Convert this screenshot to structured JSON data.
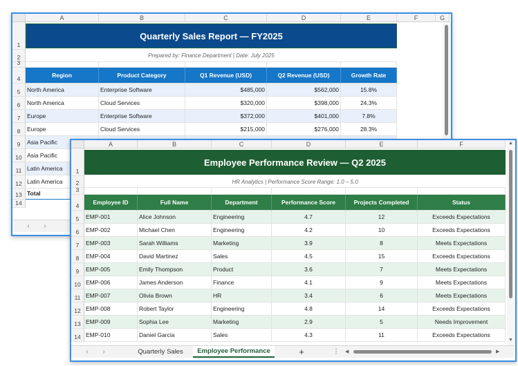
{
  "sheet1": {
    "columns": [
      "A",
      "B",
      "C",
      "D",
      "E",
      "F",
      "G"
    ],
    "rows": [
      "1",
      "2",
      "3",
      "4",
      "5",
      "6",
      "7",
      "8",
      "9",
      "10",
      "11",
      "12",
      "13",
      "14"
    ],
    "title": "Quarterly Sales Report — FY2025",
    "subtitle": "Prepared by: Finance Department  |  Date: July 2025",
    "headers": [
      "Region",
      "Product Category",
      "Q1 Revenue (USD)",
      "Q2 Revenue (USD)",
      "Growth Rate"
    ],
    "data": [
      [
        "North America",
        "Enterprise Software",
        "$485,000",
        "$562,000",
        "15.8%"
      ],
      [
        "North America",
        "Cloud Services",
        "$320,000",
        "$398,000",
        "24.3%"
      ],
      [
        "Europe",
        "Enterprise Software",
        "$372,000",
        "$401,000",
        "7.8%"
      ],
      [
        "Europe",
        "Cloud Services",
        "$215,000",
        "$276,000",
        "28.3%"
      ],
      [
        "Asia Pacific",
        "",
        "",
        "",
        ""
      ],
      [
        "Asia Pacific",
        "",
        "",
        "",
        ""
      ],
      [
        "Latin America",
        "",
        "",
        "",
        ""
      ],
      [
        "Latin America",
        "",
        "",
        "",
        ""
      ]
    ],
    "total_label": "Total",
    "nav_prev": "‹",
    "nav_next": "›"
  },
  "sheet2": {
    "columns": [
      "A",
      "B",
      "C",
      "D",
      "E",
      "F"
    ],
    "rows": [
      "1",
      "2",
      "3",
      "4",
      "5",
      "6",
      "7",
      "8",
      "9",
      "10",
      "11",
      "12",
      "13",
      "14"
    ],
    "title": "Employee Performance Review — Q2 2025",
    "subtitle": "HR Analytics  |  Performance Score Range: 1.0 – 5.0",
    "headers": [
      "Employee ID",
      "Full Name",
      "Department",
      "Performance Score",
      "Projects Completed",
      "Status"
    ],
    "data": [
      [
        "EMP-001",
        "Alice Johnson",
        "Engineering",
        "4.7",
        "12",
        "Exceeds Expectations"
      ],
      [
        "EMP-002",
        "Michael Chen",
        "Engineering",
        "4.2",
        "10",
        "Exceeds Expectations"
      ],
      [
        "EMP-003",
        "Sarah Williams",
        "Marketing",
        "3.9",
        "8",
        "Meets Expectations"
      ],
      [
        "EMP-004",
        "David Martinez",
        "Sales",
        "4.5",
        "15",
        "Exceeds Expectations"
      ],
      [
        "EMP-005",
        "Emily Thompson",
        "Product",
        "3.6",
        "7",
        "Meets Expectations"
      ],
      [
        "EMP-006",
        "James Anderson",
        "Finance",
        "4.1",
        "9",
        "Meets Expectations"
      ],
      [
        "EMP-007",
        "Olivia Brown",
        "HR",
        "3.4",
        "6",
        "Meets Expectations"
      ],
      [
        "EMP-008",
        "Robert Taylor",
        "Engineering",
        "4.8",
        "14",
        "Exceeds Expectations"
      ],
      [
        "EMP-009",
        "Sophia Lee",
        "Marketing",
        "2.9",
        "5",
        "Needs Improvement"
      ],
      [
        "EMP-010",
        "Daniel Garcia",
        "Sales",
        "4.3",
        "11",
        "Exceeds Expectations"
      ]
    ],
    "tabs": [
      "Quarterly Sales",
      "Employee Performance"
    ],
    "add_tab": "+",
    "more": "⋮",
    "nav_prev": "‹",
    "nav_next": "›",
    "scroll_up": "▲",
    "scroll_down": "▼",
    "scroll_left": "◀",
    "scroll_right": "▶"
  },
  "colors": {
    "sales_title": "#0b4a8c",
    "sales_header": "#1676c8",
    "perf_title": "#1e5e33",
    "perf_header": "#2f7d47",
    "window_border": "#3a8ee6"
  }
}
